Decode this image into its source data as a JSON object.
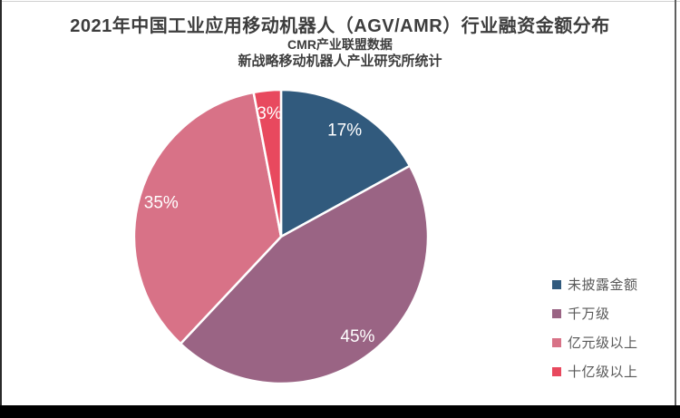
{
  "header": {
    "title": "2021年中国工业应用移动机器人（AGV/AMR）行业融资金额分布",
    "subtitle1": "CMR产业联盟数据",
    "subtitle2": "新战略移动机器人产业研究所统计"
  },
  "chart_data": {
    "type": "pie",
    "title": "2021年中国工业应用移动机器人（AGV/AMR）行业融资金额分布",
    "subtitle": "CMR产业联盟数据 / 新战略移动机器人产业研究所统计",
    "categories": [
      "未披露金额",
      "千万级",
      "亿元级以上",
      "十亿级以上"
    ],
    "values": [
      17,
      45,
      35,
      3
    ],
    "unit": "%",
    "data_labels": [
      "17%",
      "45%",
      "35%",
      "3%"
    ],
    "colors": [
      "#315a7d",
      "#9a6484",
      "#d87287",
      "#e8495e"
    ],
    "start_angle_deg": 0,
    "direction": "clockwise",
    "legend_position": "right",
    "data_label_color": "#ffffff",
    "slice_border_color": "#ffffff"
  },
  "legend": {
    "items": [
      {
        "label": "未披露金额",
        "color": "#315a7d"
      },
      {
        "label": "千万级",
        "color": "#9a6484"
      },
      {
        "label": "亿元级以上",
        "color": "#d87287"
      },
      {
        "label": "十亿级以上",
        "color": "#e8495e"
      }
    ]
  }
}
